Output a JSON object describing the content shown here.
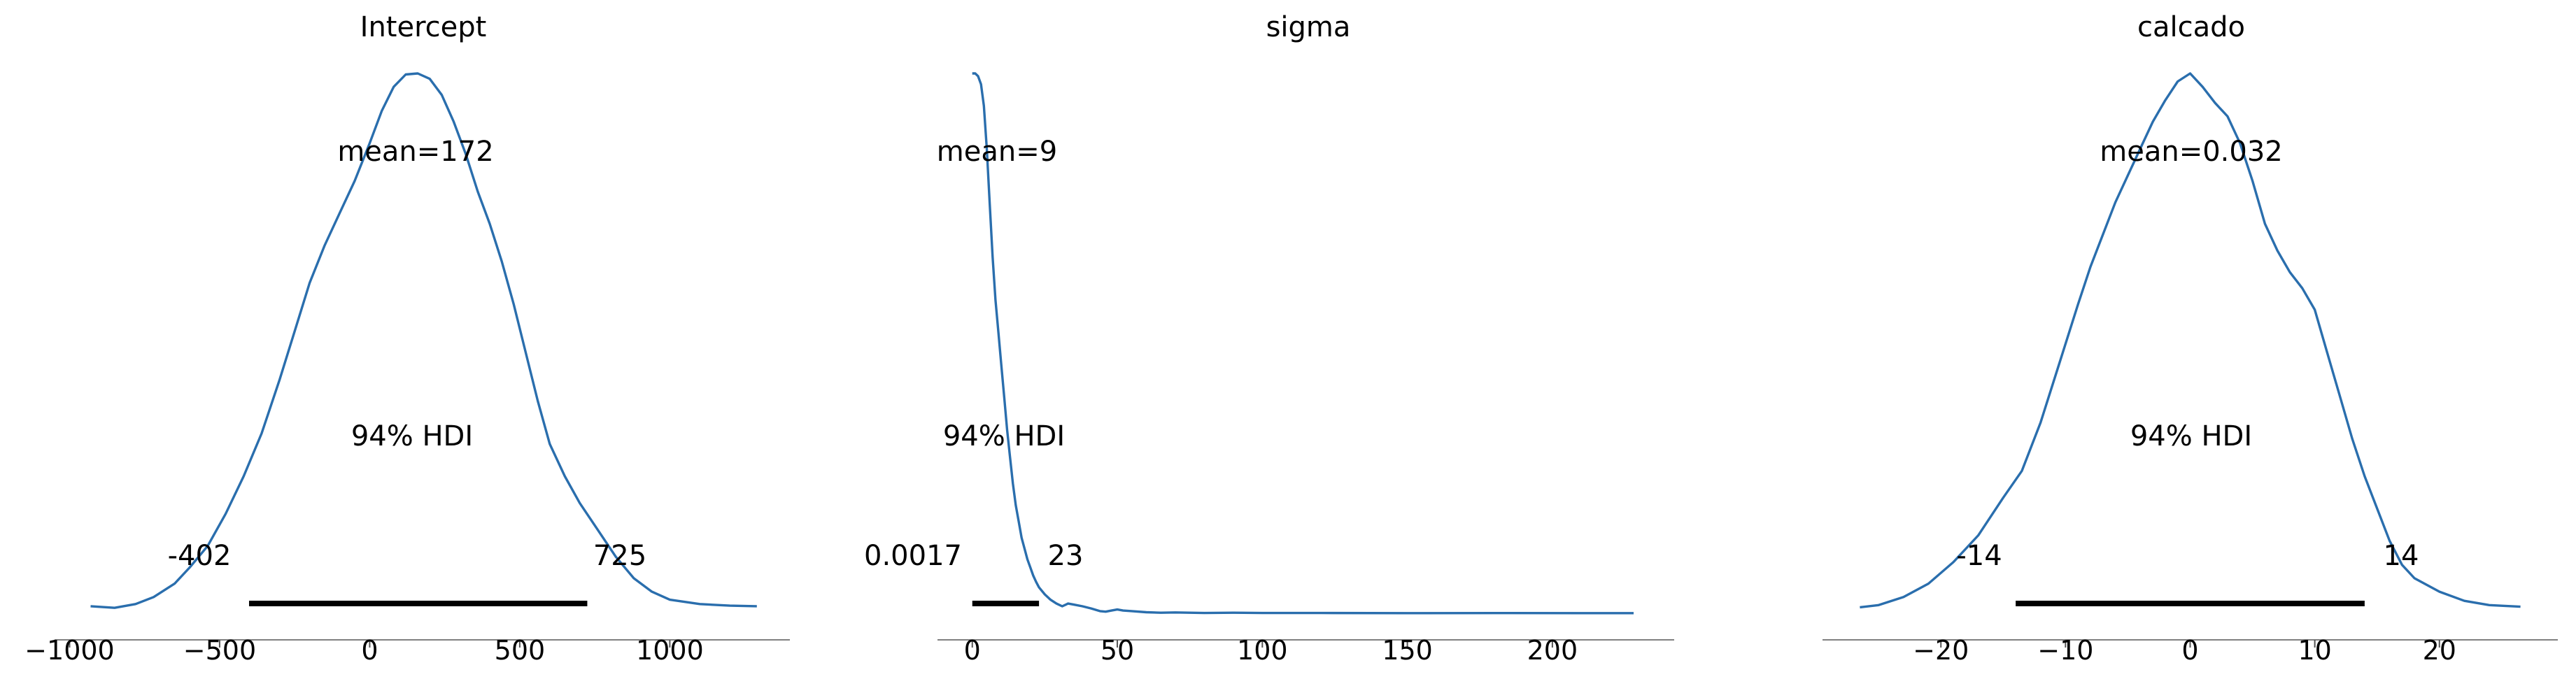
{
  "chart_data": [
    {
      "type": "line",
      "title": "Intercept",
      "mean_label": "mean=172",
      "hdi_label": "94% HDI",
      "hdi_low": -402,
      "hdi_high": 725,
      "hdi_low_label": "-402",
      "hdi_high_label": "725",
      "xlim": [
        -1050,
        1400
      ],
      "ticks": [
        -1000,
        -500,
        0,
        500,
        1000
      ],
      "tick_labels": [
        "−1000",
        "−500",
        "0",
        "500",
        "1000"
      ],
      "x": [
        -930,
        -850,
        -780,
        -720,
        -650,
        -600,
        -540,
        -480,
        -420,
        -360,
        -300,
        -250,
        -200,
        -150,
        -100,
        -50,
        0,
        40,
        80,
        120,
        160,
        200,
        240,
        280,
        320,
        360,
        400,
        440,
        480,
        520,
        560,
        600,
        650,
        700,
        760,
        820,
        880,
        940,
        1000,
        1100,
        1200,
        1290
      ],
      "y": [
        0.008,
        0.005,
        0.012,
        0.025,
        0.05,
        0.08,
        0.12,
        0.18,
        0.25,
        0.33,
        0.43,
        0.52,
        0.61,
        0.68,
        0.74,
        0.8,
        0.87,
        0.93,
        0.975,
        0.998,
        1.0,
        0.99,
        0.96,
        0.91,
        0.85,
        0.78,
        0.72,
        0.65,
        0.57,
        0.48,
        0.39,
        0.31,
        0.25,
        0.2,
        0.15,
        0.1,
        0.06,
        0.035,
        0.02,
        0.012,
        0.009,
        0.008
      ]
    },
    {
      "type": "line",
      "title": "sigma",
      "mean_label": "mean=9",
      "hdi_label": "94% HDI",
      "hdi_low": 0.0017,
      "hdi_high": 23,
      "hdi_low_label": "0.0017",
      "hdi_high_label": "23",
      "xlim": [
        -12,
        242
      ],
      "ticks": [
        0,
        50,
        100,
        150,
        200
      ],
      "tick_labels": [
        "0",
        "50",
        "100",
        "150",
        "200"
      ],
      "x": [
        0,
        1,
        2,
        3,
        4,
        5,
        6,
        7,
        8,
        9,
        10,
        11,
        12,
        13,
        14,
        15,
        16,
        17,
        18,
        19,
        20,
        21,
        22,
        23,
        25,
        27,
        29,
        31,
        33,
        35,
        38,
        41,
        44,
        46,
        48,
        50,
        52,
        55,
        60,
        65,
        70,
        80,
        90,
        100,
        120,
        150,
        180,
        210,
        228
      ],
      "y": [
        1.0,
        1.0,
        0.995,
        0.98,
        0.94,
        0.86,
        0.76,
        0.66,
        0.58,
        0.52,
        0.46,
        0.4,
        0.34,
        0.29,
        0.24,
        0.2,
        0.17,
        0.14,
        0.12,
        0.1,
        0.085,
        0.07,
        0.058,
        0.048,
        0.035,
        0.025,
        0.018,
        0.013,
        0.018,
        0.016,
        0.013,
        0.009,
        0.004,
        0.003,
        0.005,
        0.007,
        0.005,
        0.004,
        0.002,
        0.001,
        0.0015,
        0.0005,
        0.001,
        0.0005,
        0.0005,
        0.0003,
        0.0004,
        0.0003,
        0.0003
      ]
    },
    {
      "type": "line",
      "title": "calcado",
      "mean_label": "mean=0.032",
      "hdi_label": "94% HDI",
      "hdi_low": -14,
      "hdi_high": 14,
      "hdi_low_label": "-14",
      "hdi_high_label": "14",
      "xlim": [
        -29.5,
        29.5
      ],
      "ticks": [
        -20,
        -10,
        0,
        10,
        20
      ],
      "tick_labels": [
        "−20",
        "−10",
        "0",
        "10",
        "20"
      ],
      "x": [
        -26.5,
        -25,
        -23,
        -21,
        -19,
        -17,
        -15,
        -13.5,
        -12,
        -10.5,
        -9,
        -8,
        -7,
        -6,
        -5,
        -4,
        -3,
        -2,
        -1,
        0,
        1,
        2,
        3,
        4,
        5,
        6,
        7,
        8,
        9,
        10,
        11,
        12,
        13,
        14,
        15,
        16,
        17,
        18,
        20,
        22,
        24,
        26.5
      ],
      "y": [
        0.006,
        0.01,
        0.025,
        0.05,
        0.09,
        0.14,
        0.21,
        0.26,
        0.35,
        0.46,
        0.57,
        0.64,
        0.7,
        0.76,
        0.81,
        0.86,
        0.91,
        0.95,
        0.985,
        1.0,
        0.975,
        0.945,
        0.92,
        0.87,
        0.8,
        0.72,
        0.67,
        0.63,
        0.6,
        0.56,
        0.48,
        0.4,
        0.32,
        0.25,
        0.19,
        0.13,
        0.085,
        0.06,
        0.035,
        0.018,
        0.01,
        0.007
      ]
    }
  ],
  "colors": {
    "density": "#2a6ead",
    "hdi": "#000000"
  }
}
